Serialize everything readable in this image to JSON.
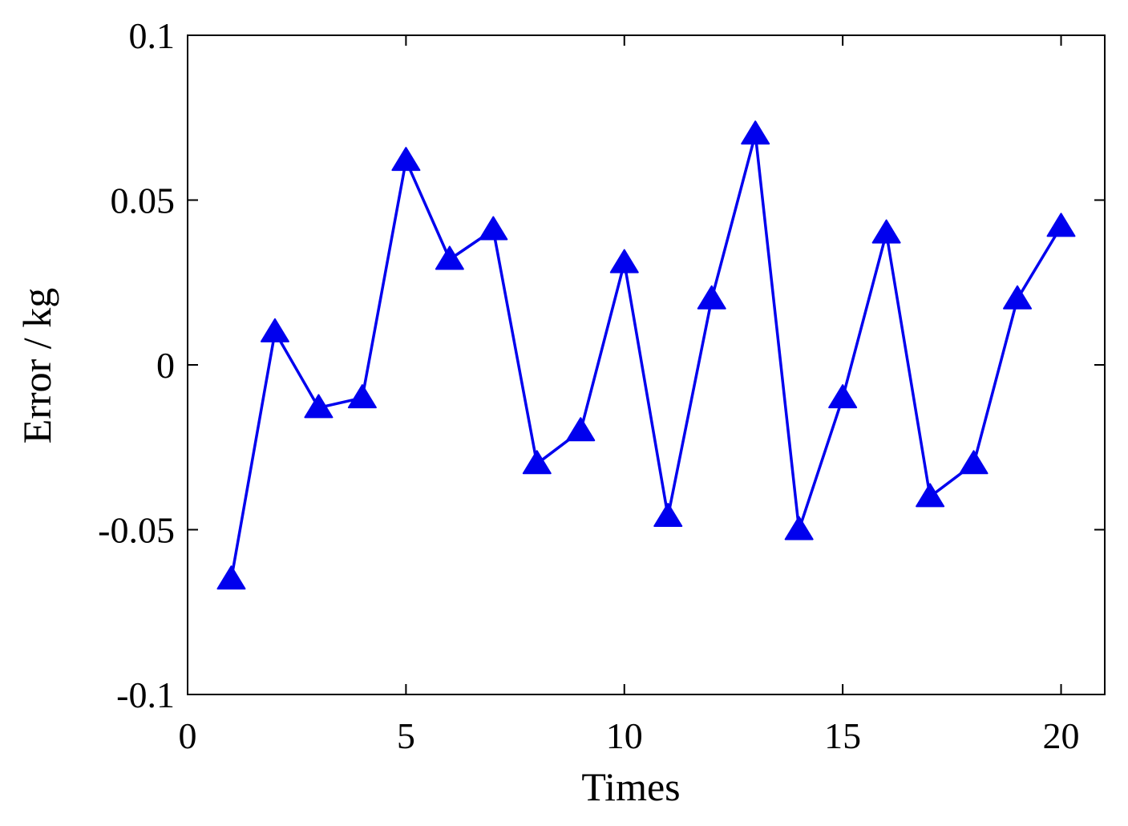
{
  "chart_data": {
    "type": "line",
    "title": "",
    "xlabel": "Times",
    "ylabel": "Error / kg",
    "xlim": [
      0,
      21
    ],
    "ylim": [
      -0.1,
      0.1
    ],
    "xticks": [
      0,
      5,
      10,
      15,
      20
    ],
    "xtick_labels": [
      "0",
      "5",
      "10",
      "15",
      "20"
    ],
    "yticks": [
      -0.1,
      -0.05,
      0,
      0.05,
      0.1
    ],
    "ytick_labels": [
      "-0.1",
      "-0.05",
      "0",
      "0.05",
      "0.1"
    ],
    "grid": false,
    "legend": "none",
    "series": [
      {
        "color": "#0000ee",
        "marker": "triangle-up",
        "x": [
          1,
          2,
          3,
          4,
          5,
          6,
          7,
          8,
          9,
          10,
          11,
          12,
          13,
          14,
          15,
          16,
          17,
          18,
          19,
          20
        ],
        "y": [
          -0.065,
          0.01,
          -0.013,
          -0.01,
          0.062,
          0.032,
          0.041,
          -0.03,
          -0.02,
          0.031,
          -0.046,
          0.02,
          0.07,
          -0.05,
          -0.01,
          0.04,
          -0.04,
          -0.03,
          0.02,
          0.042
        ]
      }
    ]
  }
}
